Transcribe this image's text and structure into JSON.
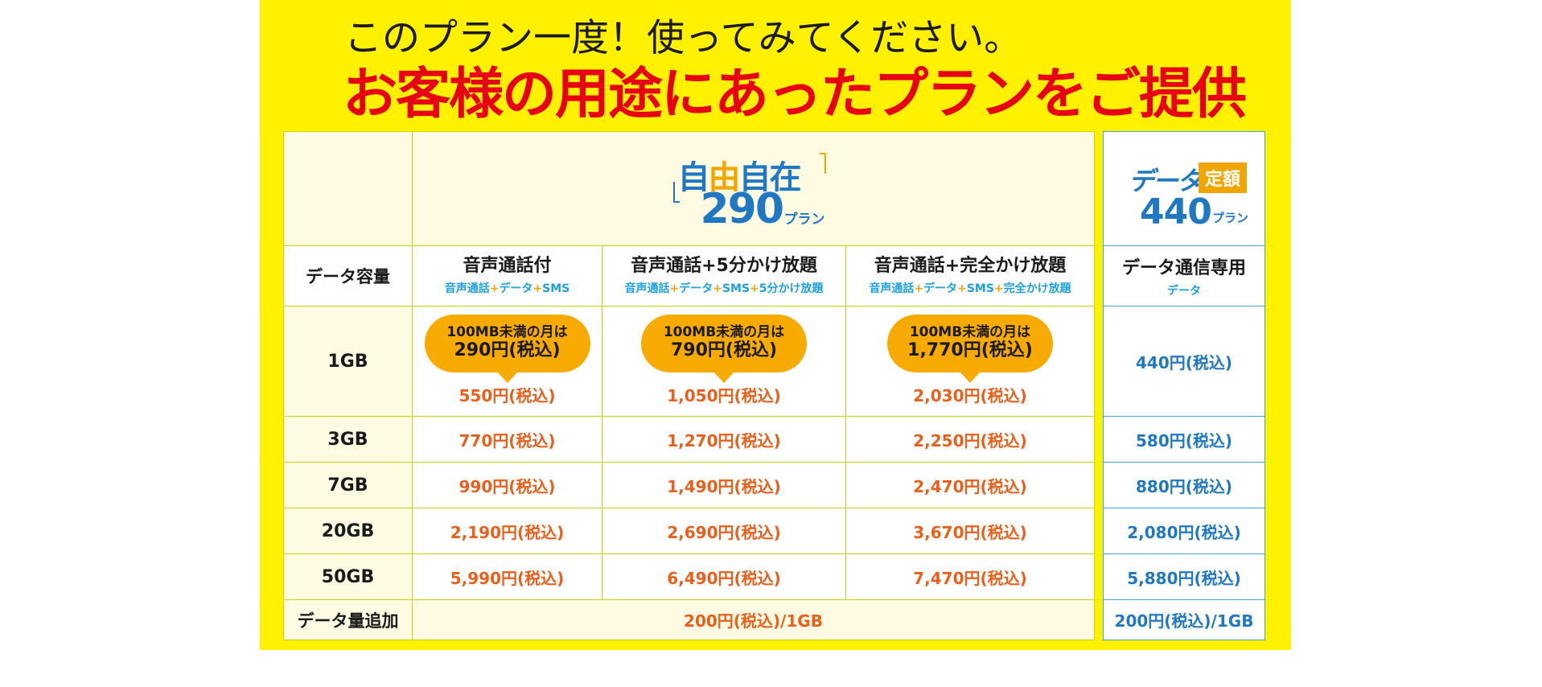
{
  "headline": {
    "line1": "このプラン一度！使ってみてください。",
    "line2": "お客様の用途にあったプランをご提供"
  },
  "logo_main": {
    "kanji_a": "自",
    "kanji_b": "由",
    "kanji_c": "自在",
    "number": "290",
    "plan": "プラン"
  },
  "logo_side": {
    "data": "データ",
    "teigaku": "定額",
    "number": "440",
    "plan": "プラン"
  },
  "columns": {
    "header_label": "データ容量",
    "plans": [
      {
        "title": "音声通話付",
        "sub": [
          "音声通話",
          "+",
          "データ",
          "+",
          "SMS"
        ]
      },
      {
        "title": "音声通話+5分かけ放題",
        "sub": [
          "音声通話",
          "+",
          "データ",
          "+",
          "SMS",
          "+",
          "5分かけ放題"
        ]
      },
      {
        "title": "音声通話+完全かけ放題",
        "sub": [
          "音声通話",
          "+",
          "データ",
          "+",
          "SMS",
          "+",
          "完全かけ放題"
        ]
      }
    ],
    "side": {
      "title": "データ通信専用",
      "sub": "データ"
    }
  },
  "bubbles": [
    {
      "line1": "100MB未満の月は",
      "line2": "290円(税込)"
    },
    {
      "line1": "100MB未満の月は",
      "line2": "790円(税込)"
    },
    {
      "line1": "100MB未満の月は",
      "line2": "1,770円(税込)"
    }
  ],
  "rows": [
    {
      "label": "1GB",
      "prices": [
        "550円(税込)",
        "1,050円(税込)",
        "2,030円(税込)"
      ],
      "side": "440円(税込)"
    },
    {
      "label": "3GB",
      "prices": [
        "770円(税込)",
        "1,270円(税込)",
        "2,250円(税込)"
      ],
      "side": "580円(税込)"
    },
    {
      "label": "7GB",
      "prices": [
        "990円(税込)",
        "1,490円(税込)",
        "2,470円(税込)"
      ],
      "side": "880円(税込)"
    },
    {
      "label": "20GB",
      "prices": [
        "2,190円(税込)",
        "2,690円(税込)",
        "3,670円(税込)"
      ],
      "side": "2,080円(税込)"
    },
    {
      "label": "50GB",
      "prices": [
        "5,990円(税込)",
        "6,490円(税込)",
        "7,470円(税込)"
      ],
      "side": "5,880円(税込)"
    }
  ],
  "addon": {
    "label": "データ量追加",
    "main": "200円(税込)/1GB",
    "side": "200円(税込)/1GB"
  },
  "colors": {
    "background": "#fff100",
    "headline_red": "#e60012",
    "price_orange": "#e8601c",
    "price_blue": "#1f78c1",
    "bubble": "#f7ab00",
    "sub_blue": "#1ea0dc"
  }
}
